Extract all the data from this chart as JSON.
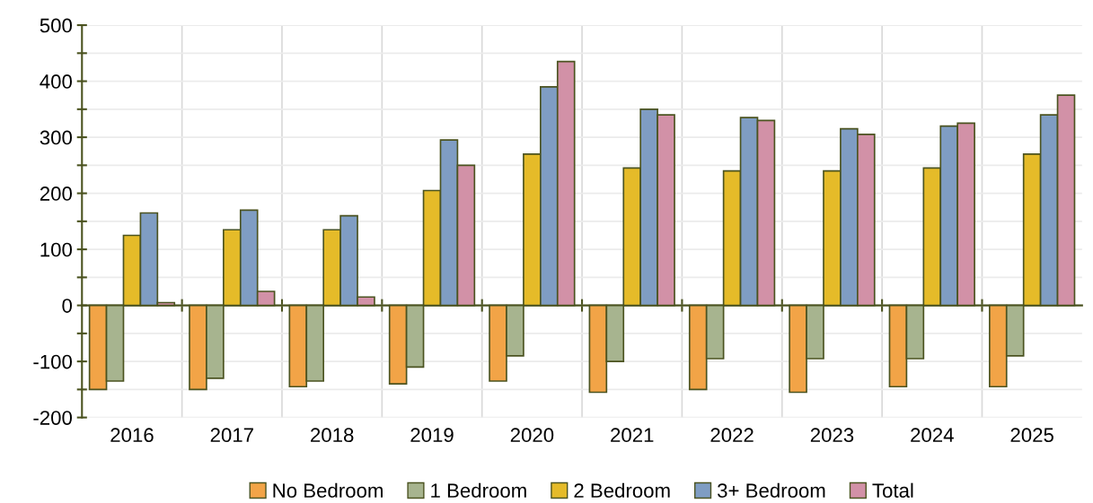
{
  "chart_data": {
    "type": "bar",
    "categories": [
      "2016",
      "2017",
      "2018",
      "2019",
      "2020",
      "2021",
      "2022",
      "2023",
      "2024",
      "2025"
    ],
    "series": [
      {
        "name": "No Bedroom",
        "color": "#f2a447",
        "values": [
          -150,
          -150,
          -145,
          -140,
          -135,
          -155,
          -150,
          -155,
          -145,
          -145
        ]
      },
      {
        "name": "1 Bedroom",
        "color": "#a7b48f",
        "values": [
          -135,
          -130,
          -135,
          -110,
          -90,
          -100,
          -95,
          -95,
          -95,
          -90
        ]
      },
      {
        "name": "2 Bedroom",
        "color": "#e5bb29",
        "values": [
          125,
          135,
          135,
          205,
          270,
          245,
          240,
          240,
          245,
          270
        ]
      },
      {
        "name": "3+ Bedroom",
        "color": "#7f9dc3",
        "values": [
          165,
          170,
          160,
          295,
          390,
          350,
          335,
          315,
          320,
          340
        ]
      },
      {
        "name": "Total",
        "color": "#d291a7",
        "values": [
          5,
          25,
          15,
          250,
          435,
          340,
          330,
          305,
          325,
          375
        ]
      }
    ],
    "ylim": [
      -200,
      500
    ],
    "yticks": [
      -200,
      {
        "value": -150,
        "label": null
      },
      -100,
      {
        "value": -50,
        "label": null
      },
      0,
      {
        "value": 50,
        "label": null
      },
      100,
      {
        "value": 150,
        "label": null
      },
      200,
      {
        "value": 250,
        "label": null
      },
      300,
      {
        "value": 350,
        "label": null
      },
      400,
      {
        "value": 450,
        "label": null
      },
      500
    ],
    "grid": true,
    "legend": "bottom"
  }
}
